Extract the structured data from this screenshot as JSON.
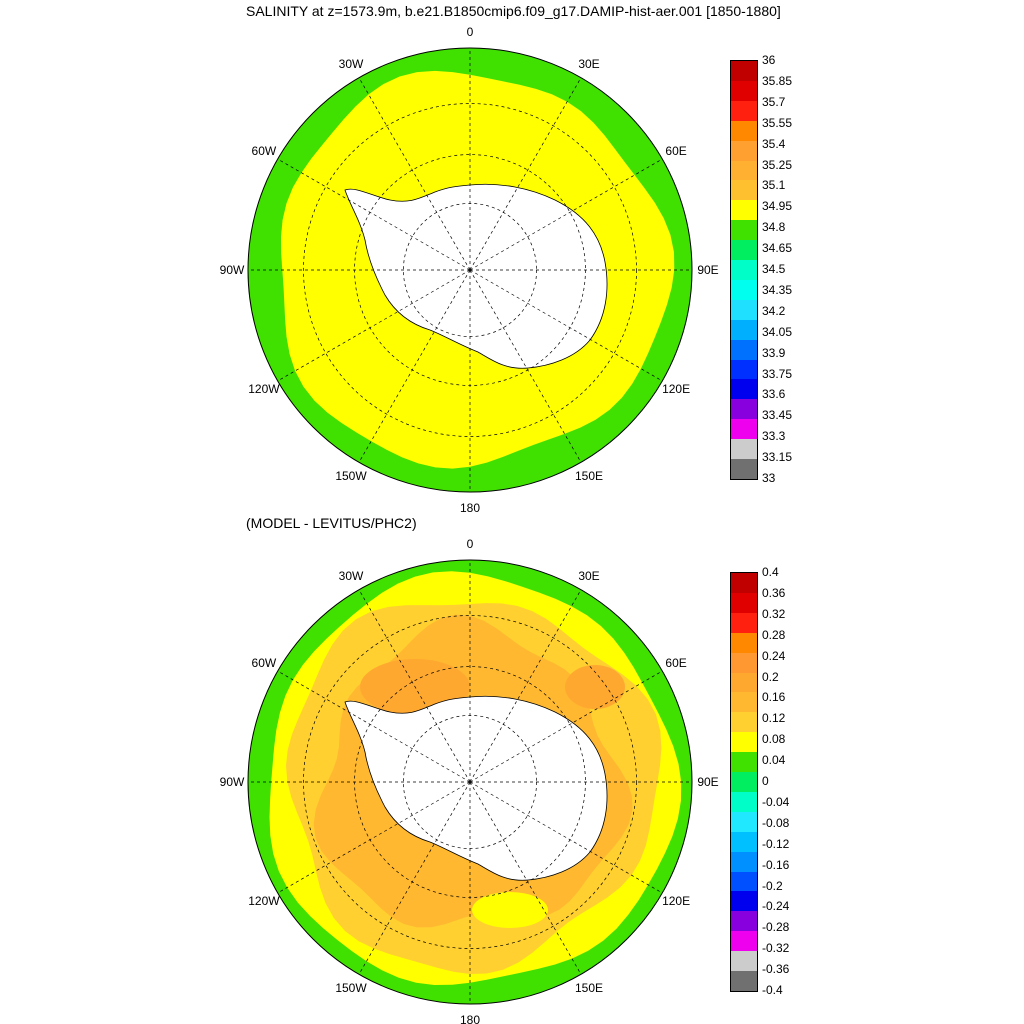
{
  "top_panel": {
    "title": "SALINITY at z=1573.9m, b.e21.B1850cmip6.f09_g17.DAMIP-hist-aer.001 [1850-1880]",
    "lon_labels": [
      "0",
      "30E",
      "60E",
      "90E",
      "120E",
      "150E",
      "180",
      "150W",
      "120W",
      "90W",
      "60W",
      "30W"
    ],
    "colorbar": {
      "levels": [
        "36",
        "35.85",
        "35.7",
        "35.55",
        "35.4",
        "35.25",
        "35.1",
        "34.95",
        "34.8",
        "34.65",
        "34.5",
        "34.35",
        "34.2",
        "34.05",
        "33.9",
        "33.75",
        "33.6",
        "33.45",
        "33.3",
        "33.15",
        "33"
      ],
      "colors": [
        "#c00000",
        "#e00000",
        "#ff2010",
        "#ff8800",
        "#ffa030",
        "#ffb030",
        "#ffc030",
        "#ffff00",
        "#40e000",
        "#00ee60",
        "#00ffc8",
        "#00ffee",
        "#20e0ff",
        "#00b0ff",
        "#0070ff",
        "#0030ff",
        "#0000ee",
        "#8800dd",
        "#ee00ee",
        "#cccccc",
        "#707070"
      ]
    }
  },
  "bottom_panel": {
    "title": "(MODEL - LEVITUS/PHC2)",
    "lon_labels": [
      "0",
      "30E",
      "60E",
      "90E",
      "120E",
      "150E",
      "180",
      "150W",
      "120W",
      "90W",
      "60W",
      "30W"
    ],
    "colorbar": {
      "levels": [
        "0.4",
        "0.36",
        "0.32",
        "0.28",
        "0.24",
        "0.2",
        "0.16",
        "0.12",
        "0.08",
        "0.04",
        "0",
        "-0.04",
        "-0.08",
        "-0.12",
        "-0.16",
        "-0.2",
        "-0.24",
        "-0.28",
        "-0.32",
        "-0.36",
        "-0.4"
      ],
      "colors": [
        "#c00000",
        "#e00000",
        "#ff2010",
        "#ff8800",
        "#ff9830",
        "#ffa830",
        "#ffb830",
        "#ffd030",
        "#ffff00",
        "#40e000",
        "#00ee60",
        "#00ffc8",
        "#20e8ff",
        "#00c0ff",
        "#0090ff",
        "#0050ff",
        "#0000ee",
        "#8800dd",
        "#ee00ee",
        "#cccccc",
        "#707070"
      ]
    }
  }
}
